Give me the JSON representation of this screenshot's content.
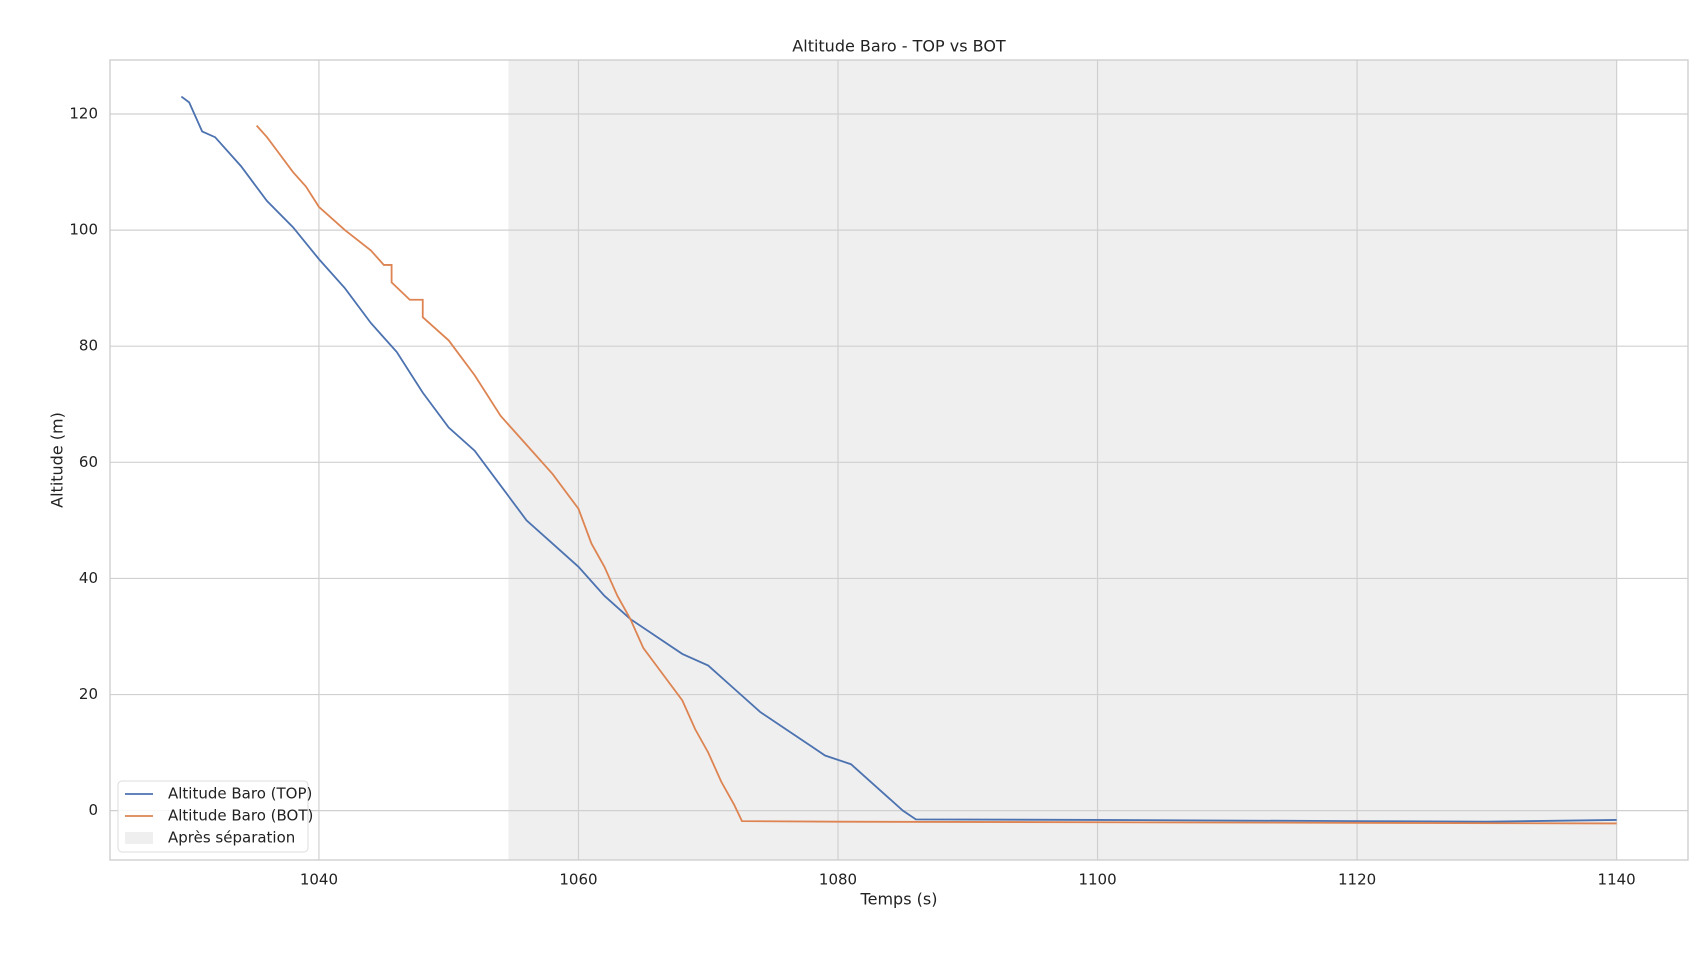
{
  "chart_data": {
    "type": "line",
    "title": "Altitude Baro - TOP vs BOT",
    "x_label": "Temps (s)",
    "y_label": "Altitude (m)",
    "series": [
      {
        "name": "Altitude Baro (TOP)",
        "color": "#4c72b0",
        "x": [
          1029.4,
          1030,
          1030.5,
          1031,
          1032,
          1034,
          1036,
          1038,
          1040,
          1042,
          1044,
          1046,
          1048,
          1050,
          1052,
          1054,
          1056,
          1058,
          1060,
          1062,
          1064,
          1066,
          1068,
          1070,
          1072,
          1074,
          1076,
          1078,
          1079,
          1081,
          1083,
          1085,
          1086,
          1100,
          1120,
          1130,
          1140
        ],
        "values": [
          123,
          122,
          119.5,
          117,
          116,
          111,
          105,
          100.5,
          95,
          90,
          84,
          79,
          72,
          66,
          62,
          56,
          50,
          46,
          42,
          37,
          33,
          30,
          27,
          25,
          21,
          17,
          14,
          11,
          9.5,
          8,
          4,
          0,
          -1.5,
          -1.6,
          -1.8,
          -1.9,
          -1.6
        ]
      },
      {
        "name": "Altitude Baro (BOT)",
        "color": "#dd8452",
        "x": [
          1035.2,
          1036,
          1037,
          1038,
          1039,
          1040,
          1042,
          1044,
          1045,
          1045.6,
          1045.6,
          1047,
          1048,
          1048,
          1050,
          1052,
          1054,
          1056,
          1058,
          1060,
          1061,
          1062,
          1063,
          1064,
          1065,
          1066,
          1068,
          1069,
          1070,
          1071,
          1072,
          1072.6,
          1080,
          1100,
          1140
        ],
        "values": [
          118,
          116,
          113,
          110,
          107.5,
          104,
          100,
          96.5,
          94,
          94,
          91,
          88,
          88,
          85,
          81,
          75,
          68,
          63,
          58,
          52,
          46,
          42,
          37,
          33,
          28,
          25,
          19,
          14,
          10,
          5,
          1,
          -1.8,
          -1.9,
          -2,
          -2.2
        ]
      }
    ],
    "span": {
      "label": "Après séparation",
      "x": [
        1054.6,
        1140
      ],
      "color": "#efefef"
    },
    "xlim": [
      1023.9,
      1145.5
    ],
    "ylim": [
      -8.5,
      129.3
    ],
    "xticks": [
      1040,
      1060,
      1080,
      1100,
      1120,
      1140
    ],
    "yticks": [
      0,
      20,
      40,
      60,
      80,
      100,
      120
    ],
    "grid": true,
    "legend": "lower left"
  }
}
